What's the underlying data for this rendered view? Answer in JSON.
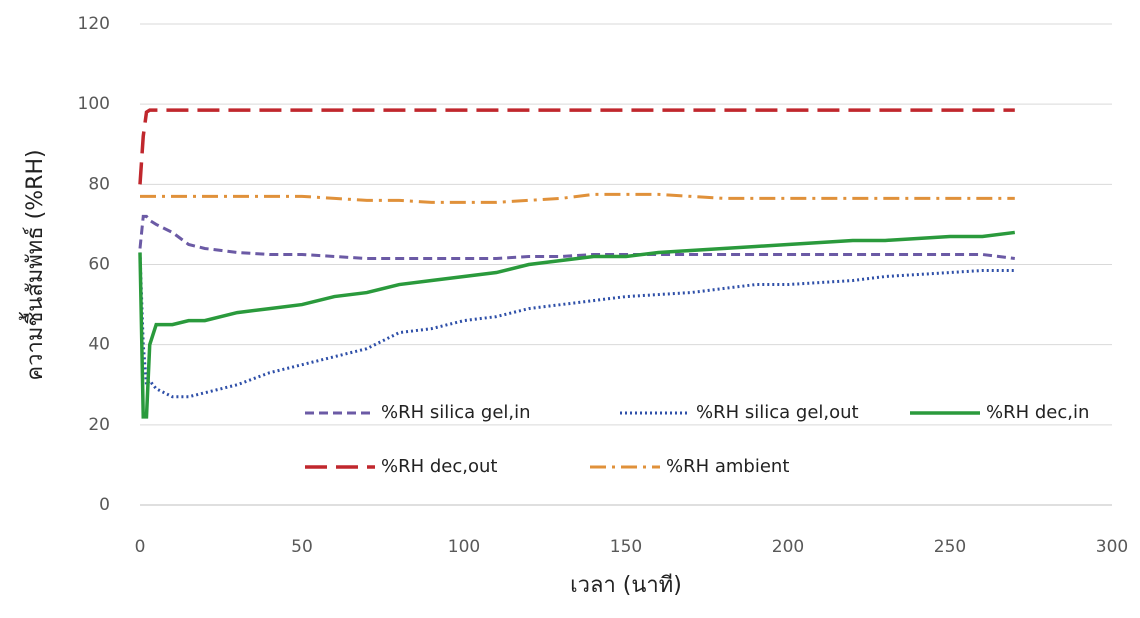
{
  "chart_data": {
    "type": "line",
    "x_label": "เวลา (นาที)",
    "y_label": "ความชื้นสัมพัทธ์ (%RH)",
    "xlim": [
      0,
      300
    ],
    "xticks": [
      0,
      50,
      100,
      150,
      200,
      250,
      300
    ],
    "ylim": [
      0,
      120
    ],
    "yticks": [
      0,
      20,
      40,
      60,
      80,
      100,
      120
    ],
    "grid": true,
    "legend": "inside-lower-center",
    "x": [
      0,
      1,
      2,
      3,
      5,
      10,
      15,
      20,
      30,
      40,
      50,
      60,
      70,
      80,
      90,
      100,
      110,
      120,
      130,
      140,
      150,
      160,
      170,
      180,
      190,
      200,
      210,
      220,
      230,
      240,
      250,
      260,
      270
    ],
    "series": [
      {
        "name": "%RH silica gel,in",
        "color": "#6b5aa5",
        "style": "dashed",
        "values": [
          64,
          72,
          72,
          71,
          70,
          68,
          65,
          64,
          63,
          62.5,
          62.5,
          62,
          61.5,
          61.5,
          61.5,
          61.5,
          61.5,
          62,
          62,
          62.5,
          62.5,
          62.5,
          62.5,
          62.5,
          62.5,
          62.5,
          62.5,
          62.5,
          62.5,
          62.5,
          62.5,
          62.5,
          61.5
        ]
      },
      {
        "name": "%RH silica gel,out",
        "color": "#2e4fa8",
        "style": "dotted",
        "values": [
          63,
          40,
          30,
          31,
          29,
          27,
          27,
          28,
          30,
          33,
          35,
          37,
          39,
          43,
          44,
          46,
          47,
          49,
          50,
          51,
          52,
          52.5,
          53,
          54,
          55,
          55,
          55.5,
          56,
          57,
          57.5,
          58,
          58.5,
          58.5
        ]
      },
      {
        "name": "%RH dec,in",
        "color": "#2a9a3c",
        "style": "solid",
        "values": [
          63,
          22,
          22,
          40,
          45,
          45,
          46,
          46,
          48,
          49,
          50,
          52,
          53,
          55,
          56,
          57,
          58,
          60,
          61,
          62,
          62,
          63,
          63.5,
          64,
          64.5,
          65,
          65.5,
          66,
          66,
          66.5,
          67,
          67,
          68
        ]
      },
      {
        "name": "%RH dec,out",
        "color": "#c0272d",
        "style": "long-dash",
        "values": [
          80,
          92,
          98,
          98.5,
          98.5,
          98.5,
          98.5,
          98.5,
          98.5,
          98.5,
          98.5,
          98.5,
          98.5,
          98.5,
          98.5,
          98.5,
          98.5,
          98.5,
          98.5,
          98.5,
          98.5,
          98.5,
          98.5,
          98.5,
          98.5,
          98.5,
          98.5,
          98.5,
          98.5,
          98.5,
          98.5,
          98.5,
          98.5
        ]
      },
      {
        "name": "%RH ambient",
        "color": "#e0913a",
        "style": "dash-dot",
        "values": [
          77,
          77,
          77,
          77,
          77,
          77,
          77,
          77,
          77,
          77,
          77,
          76.5,
          76,
          76,
          75.5,
          75.5,
          75.5,
          76,
          76.5,
          77.5,
          77.5,
          77.5,
          77,
          76.5,
          76.5,
          76.5,
          76.5,
          76.5,
          76.5,
          76.5,
          76.5,
          76.5,
          76.5
        ]
      }
    ]
  }
}
